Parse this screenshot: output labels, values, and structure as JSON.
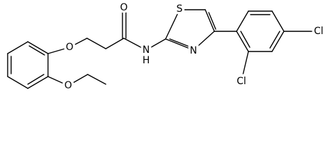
{
  "atoms": [
    {
      "label": "O"
    },
    {
      "label": "O"
    },
    {
      "label": "O"
    },
    {
      "label": "N"
    },
    {
      "label": "H"
    },
    {
      "label": "S"
    },
    {
      "label": "N"
    },
    {
      "label": "Cl"
    },
    {
      "label": "Cl"
    }
  ]
}
